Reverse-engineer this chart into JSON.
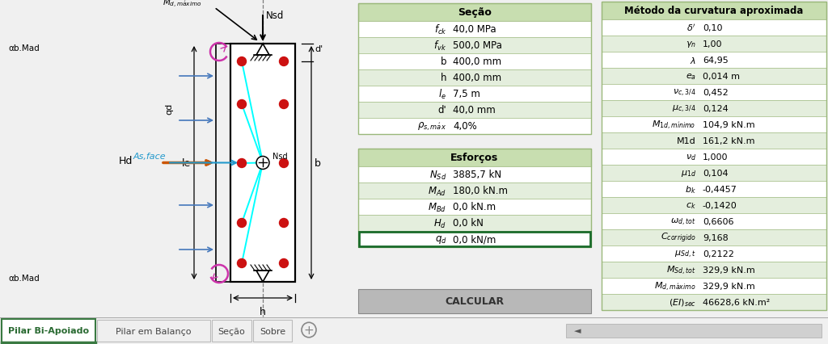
{
  "bg_color": "#f0f0f0",
  "white": "#ffffff",
  "table_header_color": "#c8deb0",
  "table_alt_color": "#e4eedd",
  "border_color": "#9ab87a",
  "secao_title": "Seção",
  "secao_rows": [
    [
      "$f_{ck}$",
      "40,0 MPa"
    ],
    [
      "$f_{vk}$",
      "500,0 MPa"
    ],
    [
      "b",
      "400,0 mm"
    ],
    [
      "h",
      "400,0 mm"
    ],
    [
      "$l_e$",
      "7,5 m"
    ],
    [
      "d'",
      "40,0 mm"
    ],
    [
      "$\\rho_{s,m\\acute{a}x}$",
      "4,0%"
    ]
  ],
  "esforcos_title": "Esforços",
  "esforcos_rows": [
    [
      "$N_{Sd}$",
      "3885,7 kN"
    ],
    [
      "$M_{Ad}$",
      "180,0 kN.m"
    ],
    [
      "$M_{Bd}$",
      "0,0 kN.m"
    ],
    [
      "$H_d$",
      "0,0 kN"
    ],
    [
      "$q_d$",
      "0,0 kN/m"
    ]
  ],
  "metodo_title": "Método da curvatura aproximada",
  "metodo_rows": [
    [
      "$\\delta '$",
      "0,10"
    ],
    [
      "$\\gamma_n$",
      "1,00"
    ],
    [
      "$\\lambda$",
      "64,95"
    ],
    [
      "$e_a$",
      "0,014 m"
    ],
    [
      "$\\nu_{c,3/4}$",
      "0,452"
    ],
    [
      "$\\mu_{c,3/4}$",
      "0,124"
    ],
    [
      "$M_{1d,m\\acute{\\imath}nimo}$",
      "104,9 kN.m"
    ],
    [
      "M1d",
      "161,2 kN.m"
    ],
    [
      "$\\nu_d$",
      "1,000"
    ],
    [
      "$\\mu_{1d}$",
      "0,104"
    ],
    [
      "$b_k$",
      "-0,4457"
    ],
    [
      "$c_k$",
      "-0,1420"
    ],
    [
      "$\\omega_{d,tot}$",
      "0,6606"
    ],
    [
      "$C_{corrigido}$",
      "9,168"
    ],
    [
      "$\\mu_{Sd,t}$",
      "0,2122"
    ],
    [
      "$M_{Sd,tot}$",
      "329,9 kN.m"
    ],
    [
      "$M_{d,m\\acute{a}ximo}$",
      "329,9 kN.m"
    ],
    [
      "$(EI)_{sec}$",
      "46628,6 kN.m²"
    ]
  ],
  "calcular_text": "CALCULAR",
  "tab_labels": [
    "Pilar Bi-Apoiado",
    "Pilar em Balanço",
    "Seção",
    "Sobre"
  ]
}
